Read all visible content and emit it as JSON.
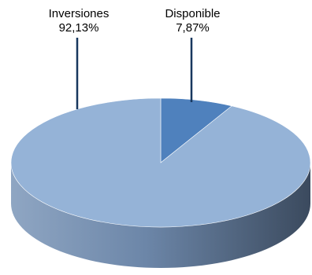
{
  "chart_data": {
    "type": "pie",
    "style": "3d",
    "slices": [
      {
        "label": "Inversiones",
        "value": 92.13,
        "display": "92,13%",
        "color": "#95b3d7"
      },
      {
        "label": "Disponible",
        "value": 7.87,
        "display": "7,87%",
        "color": "#4f81bd"
      }
    ],
    "leader_color": "#17375e"
  }
}
